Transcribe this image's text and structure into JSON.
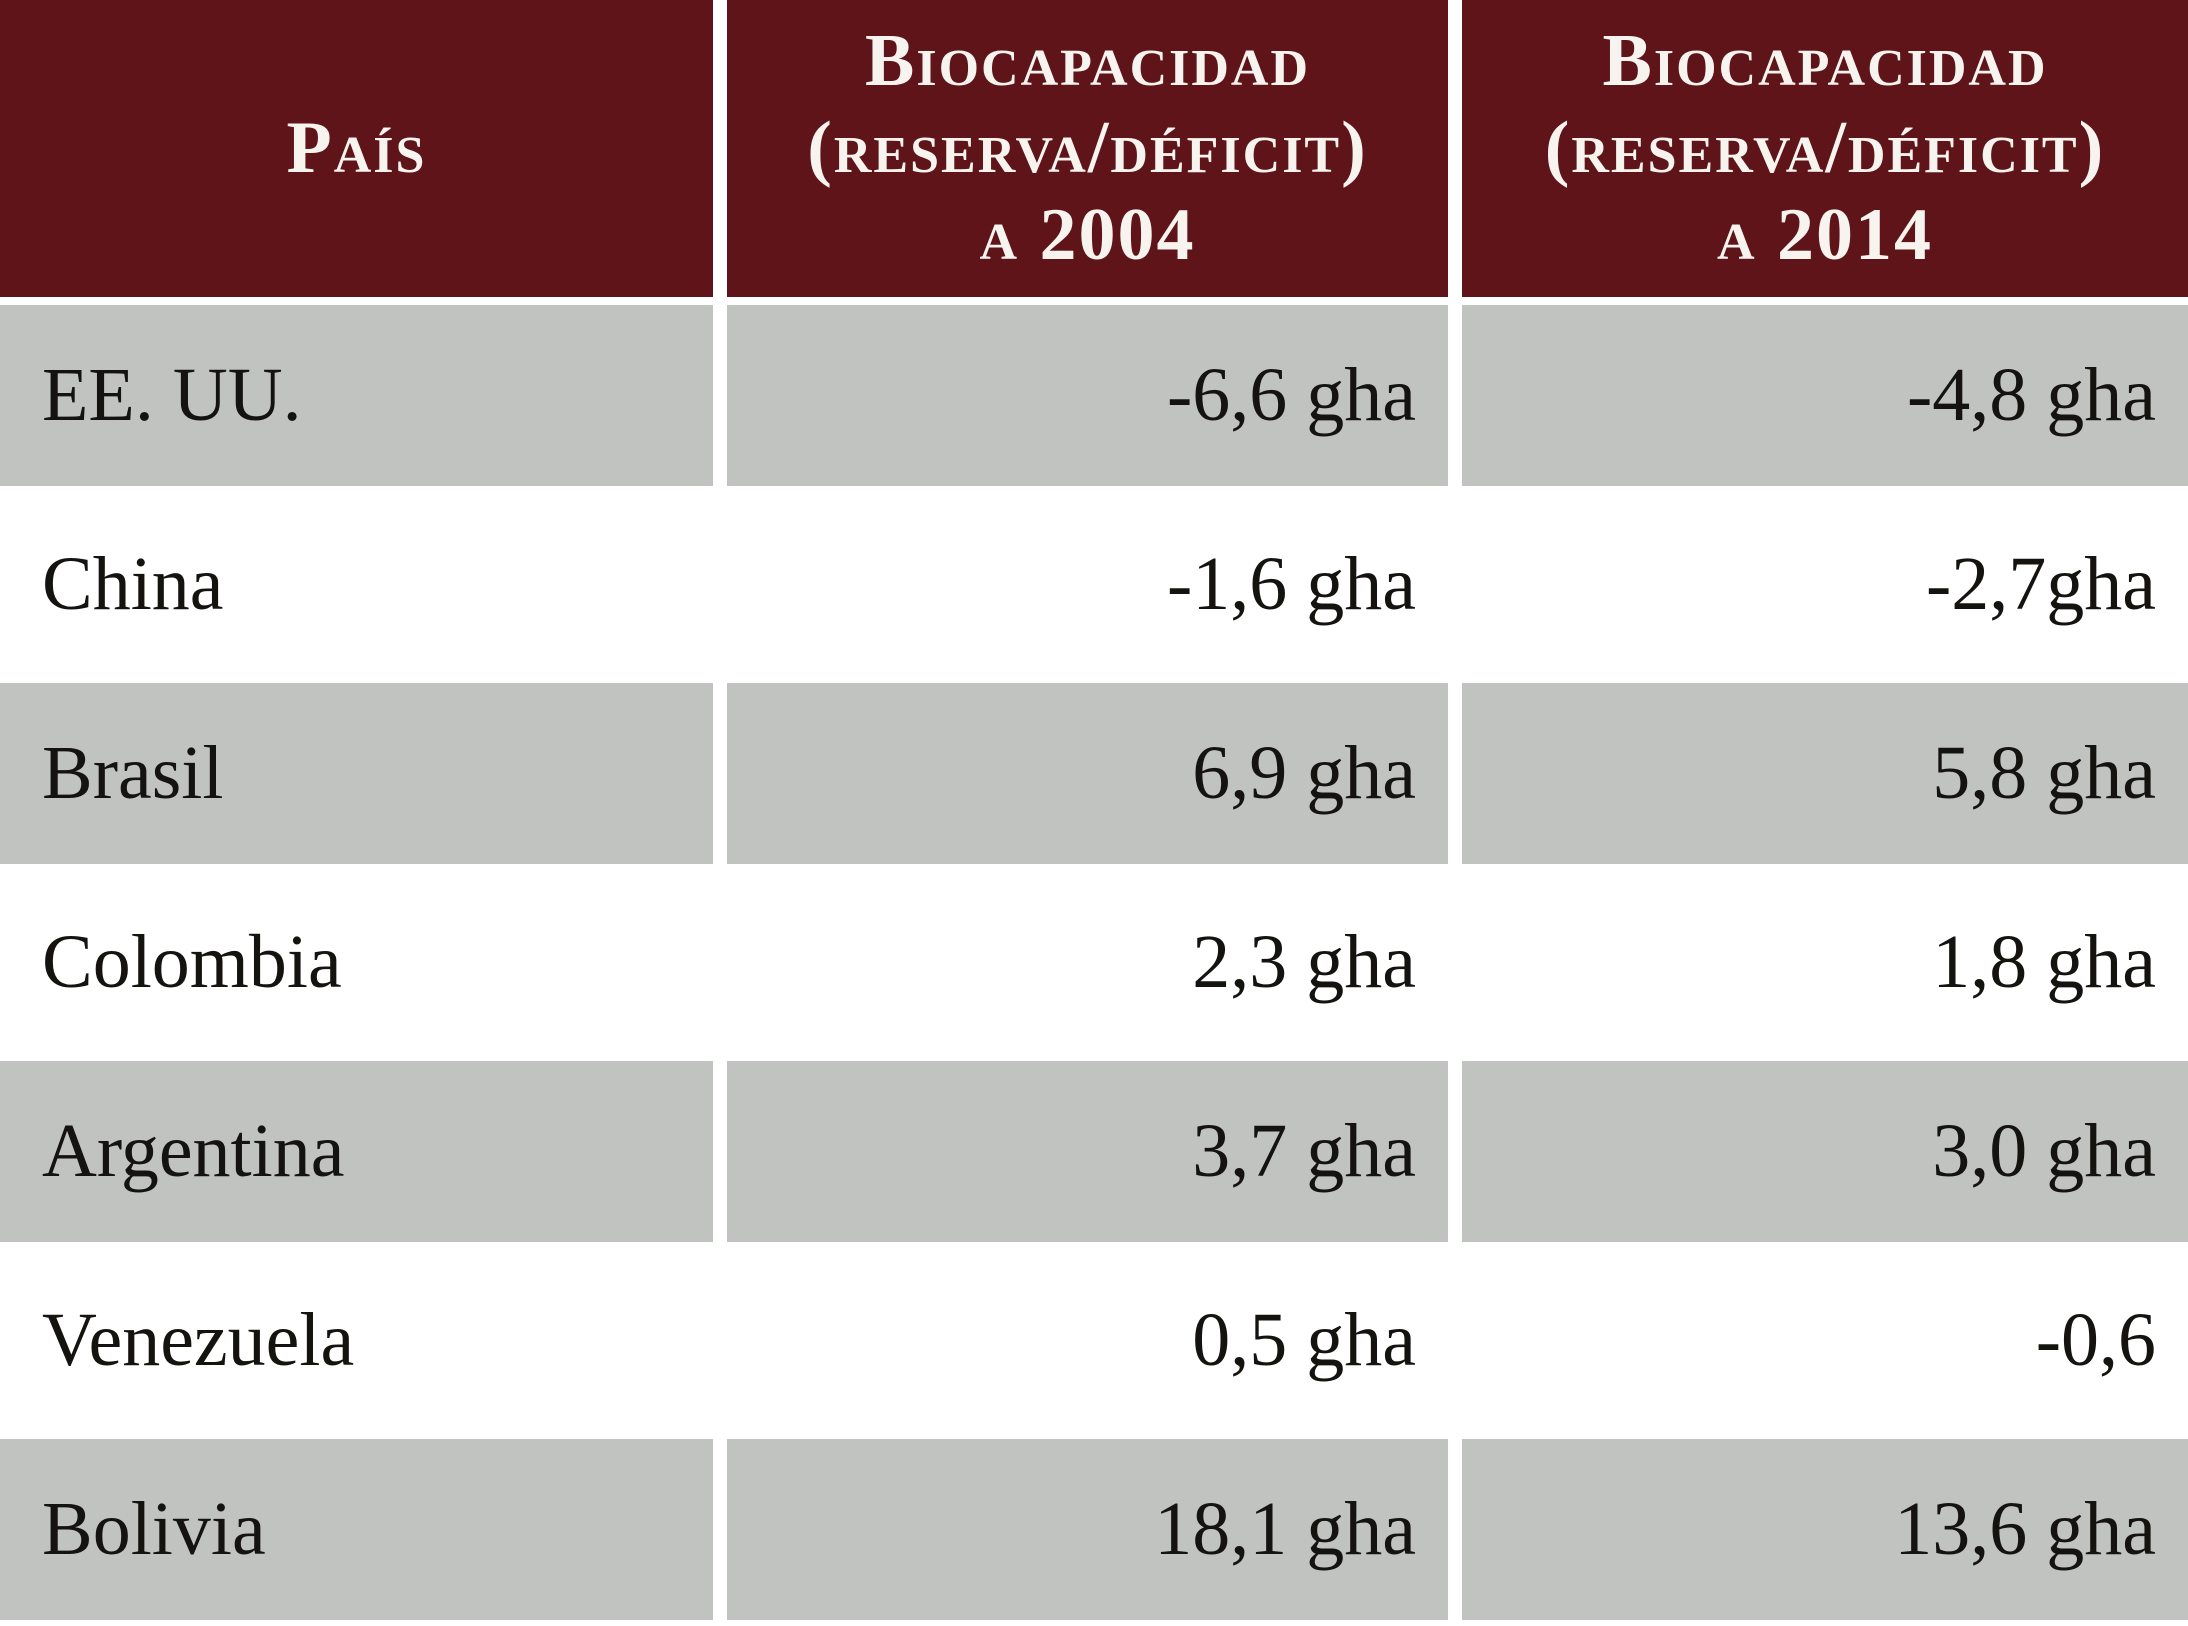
{
  "table": {
    "header": {
      "col1": {
        "label": "País"
      },
      "col2": {
        "title": "Biocapacidad",
        "subtitle": "(reserva/déficit)",
        "period": "a 2004"
      },
      "col3": {
        "title": "Biocapacidad",
        "subtitle": "(reserva/déficit)",
        "period": "a 2014"
      }
    },
    "rows": [
      {
        "country": "EE. UU.",
        "v2004": "-6,6 gha",
        "v2014": "-4,8 gha"
      },
      {
        "country": "China",
        "v2004": "-1,6 gha",
        "v2014": "-2,7gha"
      },
      {
        "country": "Brasil",
        "v2004": "6,9 gha",
        "v2014": "5,8 gha"
      },
      {
        "country": "Colombia",
        "v2004": "2,3 gha",
        "v2014": "1,8 gha"
      },
      {
        "country": "Argentina",
        "v2004": "3,7 gha",
        "v2014": "3,0 gha"
      },
      {
        "country": "Venezuela",
        "v2004": "0,5 gha",
        "v2014": "-0,6"
      },
      {
        "country": "Bolivia",
        "v2004": "18,1 gha",
        "v2014": "13,6 gha"
      }
    ],
    "colors": {
      "header_bg": "#5e1419",
      "header_text": "#f7f3ee",
      "row_alt_bg": "#c1c3c0",
      "row_bg": "#ffffff",
      "body_text": "#151310"
    }
  },
  "chart_data": {
    "type": "table",
    "title": "",
    "unit": "gha",
    "columns": [
      "País",
      "Biocapacidad (reserva/déficit) a 2004",
      "Biocapacidad (reserva/déficit) a 2014"
    ],
    "rows": [
      {
        "pais": "EE. UU.",
        "a2004": -6.6,
        "a2014": -4.8
      },
      {
        "pais": "China",
        "a2004": -1.6,
        "a2014": -2.7
      },
      {
        "pais": "Brasil",
        "a2004": 6.9,
        "a2014": 5.8
      },
      {
        "pais": "Colombia",
        "a2004": 2.3,
        "a2014": 1.8
      },
      {
        "pais": "Argentina",
        "a2004": 3.7,
        "a2014": 3.0
      },
      {
        "pais": "Venezuela",
        "a2004": 0.5,
        "a2014": -0.6
      },
      {
        "pais": "Bolivia",
        "a2004": 18.1,
        "a2014": 13.6
      }
    ]
  }
}
